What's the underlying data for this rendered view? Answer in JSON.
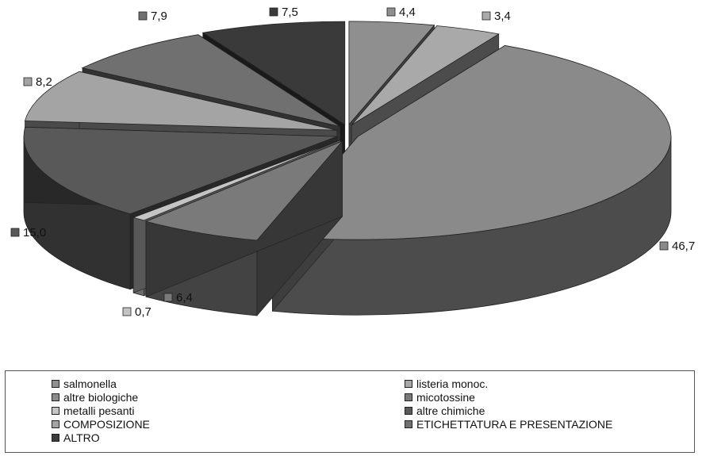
{
  "chart_data": {
    "type": "pie",
    "style": "3d-exploded",
    "title": "",
    "categories": [
      "salmonella",
      "listeria monoc.",
      "altre biologiche",
      "micotossine",
      "metalli pesanti",
      "altre chimiche",
      "COMPOSIZIONE",
      "ETICHETTATURA E PRESENTAZIONE",
      "ALTRO"
    ],
    "values": [
      4.4,
      3.4,
      46.7,
      6.4,
      0.7,
      15.0,
      8.2,
      7.9,
      7.5
    ],
    "value_labels": [
      "4,4",
      "3,4",
      "46,7",
      "6,4",
      "0,7",
      "15,0",
      "8,2",
      "7,9",
      "7,5"
    ],
    "colors": [
      "#8f8f8f",
      "#a9a9a9",
      "#8a8a8a",
      "#7a7a7a",
      "#c4c4c4",
      "#595959",
      "#a4a4a4",
      "#707070",
      "#3a3a3a"
    ],
    "legend_position": "bottom",
    "legend_columns": 2
  }
}
